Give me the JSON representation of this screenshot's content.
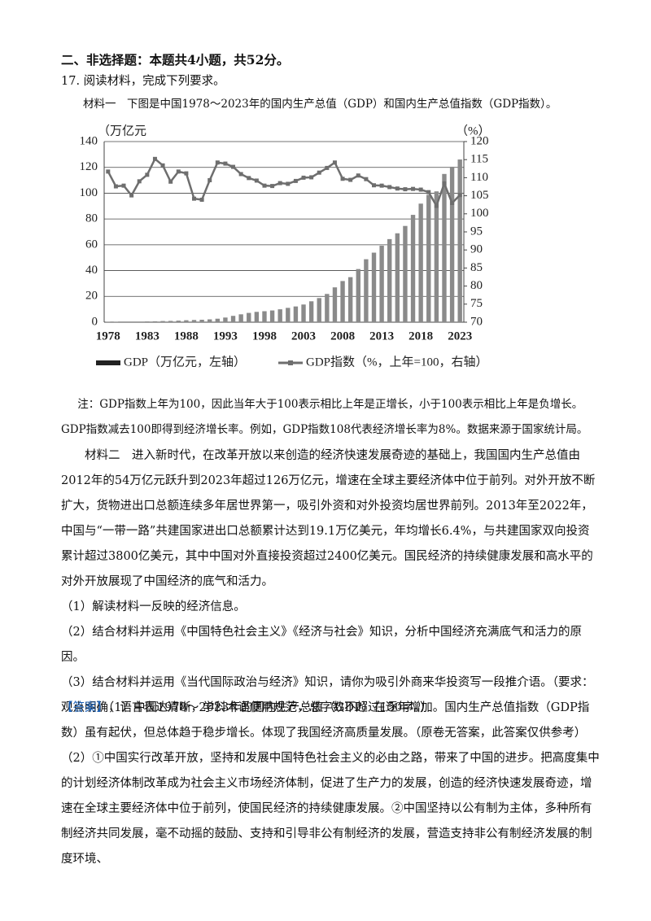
{
  "heading": "二、非选择题：本题共4小题，共52分。",
  "question_intro": "17. 阅读材料，完成下列要求。",
  "material1": "材料一　下图是中国1978～2023年的国内生产总值（GDP）和国内生产总值指数（GDP指数）。",
  "chart_data": {
    "type": "bar",
    "y_label": "（万亿元",
    "y2_label": "（%）",
    "categories": [
      "1978",
      null,
      null,
      null,
      null,
      "1983",
      null,
      null,
      null,
      null,
      "1988",
      null,
      null,
      null,
      null,
      "1993",
      null,
      null,
      null,
      null,
      "1998",
      null,
      null,
      null,
      null,
      "2003",
      null,
      null,
      null,
      null,
      "2008",
      null,
      null,
      null,
      null,
      "2013",
      null,
      null,
      null,
      null,
      "2018",
      null,
      null,
      null,
      null,
      "2023"
    ],
    "series": [
      {
        "name": "GDP（万亿元，左轴）",
        "color": "#8a8a8a",
        "type": "bar",
        "values": [
          0.4,
          0.4,
          0.5,
          0.5,
          0.5,
          0.6,
          0.7,
          0.9,
          1.0,
          1.2,
          1.5,
          1.7,
          1.9,
          2.2,
          2.7,
          3.6,
          4.9,
          6.1,
          7.2,
          8.0,
          8.5,
          9.1,
          10.0,
          11.1,
          12.2,
          13.7,
          16.2,
          18.7,
          21.9,
          27.0,
          31.9,
          34.9,
          41.2,
          48.8,
          53.9,
          59.3,
          64.4,
          68.9,
          74.6,
          83.2,
          91.9,
          98.7,
          101.4,
          114.9,
          120.5,
          126.1
        ]
      },
      {
        "name": "GDP指数（%，上年=100，右轴）",
        "color": "#6e6e6e",
        "type": "line",
        "axis": "y2",
        "values": [
          111.7,
          107.6,
          107.8,
          105.1,
          109.0,
          110.8,
          115.2,
          113.4,
          108.9,
          111.7,
          111.2,
          104.2,
          103.9,
          109.3,
          114.2,
          113.9,
          113.0,
          111.0,
          109.9,
          109.2,
          107.8,
          107.7,
          108.5,
          108.3,
          109.1,
          110.0,
          110.1,
          111.4,
          112.7,
          114.2,
          109.7,
          109.4,
          110.6,
          109.6,
          107.9,
          107.8,
          107.4,
          107.0,
          106.8,
          106.9,
          106.7,
          106.0,
          102.2,
          108.4,
          103.0,
          105.2
        ]
      }
    ],
    "ylim": [
      0,
      140
    ],
    "yticks": [
      0,
      20,
      40,
      60,
      80,
      100,
      120,
      140
    ],
    "y2lim": [
      70,
      120
    ],
    "y2ticks": [
      70,
      75,
      80,
      85,
      90,
      95,
      100,
      105,
      110,
      115,
      120
    ],
    "grid": true,
    "legend": "bottom"
  },
  "note": "注：GDP指数上年为100，因此当年大于100表示相比上年是正增长，小于100表示相比上年是负增长。GDP指数减去100即得到经济增长率。例如，GDP指数108代表经济增长率为8%。数据来源于国家统计局。",
  "material2": "材料二　进入新时代，在改革开放以来创造的经济快速发展奇迹的基础上，我国国内生产总值由2012年的54万亿元跃升到2023年超过126万亿元，增速在全球主要经济体中位于前列。对外开放不断扩大，货物进出口总额连续多年居世界第一，吸引外资和对外投资均居世界前列。2013年至2022年，中国与“一带一路”共建国家进出口总额累计达到19.1万亿美元，年均增长6.4%，与共建国家双向投资累计超过3800亿美元，其中中国对外直接投资超过2400亿美元。国民经济的持续健康发展和高水平的对外开放展现了中国经济的底气和活力。",
  "questions": [
    "（1）解读材料一反映的经济信息。",
    "（2）结合材料并运用《中国特色社会主义》《经济与社会》知识，分析中国经济充满底气和活力的原因。",
    "（3）结合材料并运用《当代国际政治与经济》知识，请你为吸引外商来华投资写一段推介语。（要求：观点明确，语言表达清晰，学科术语使用规范，总字数不超过150字。）"
  ],
  "answer": {
    "label": "【答案】",
    "part1": "（1）中国1978～2023年的国内生产总值（GDP）在逐年增加。国内生产总值指数（GDP指数）虽有起伏，但总体趋于稳步增长。体现了我国经济高质量发展。（原卷无答案，此答案仅供参考）",
    "part2": "（2）①中国实行改革开放，坚持和发展中国特色社会主义的必由之路，带来了中国的进步。把高度集中的计划经济体制改革成为社会主义市场经济体制，促进了生产力的发展，创造的经济快速发展奇迹，增速在全球主要经济体中位于前列，使国民经济的持续健康发展。②中国坚持以公有制为主体，多种所有制经济共同发展，毫不动摇的鼓励、支持和引导非公有制经济的发展，营造支持非公有制经济发展的制度环境、"
  }
}
